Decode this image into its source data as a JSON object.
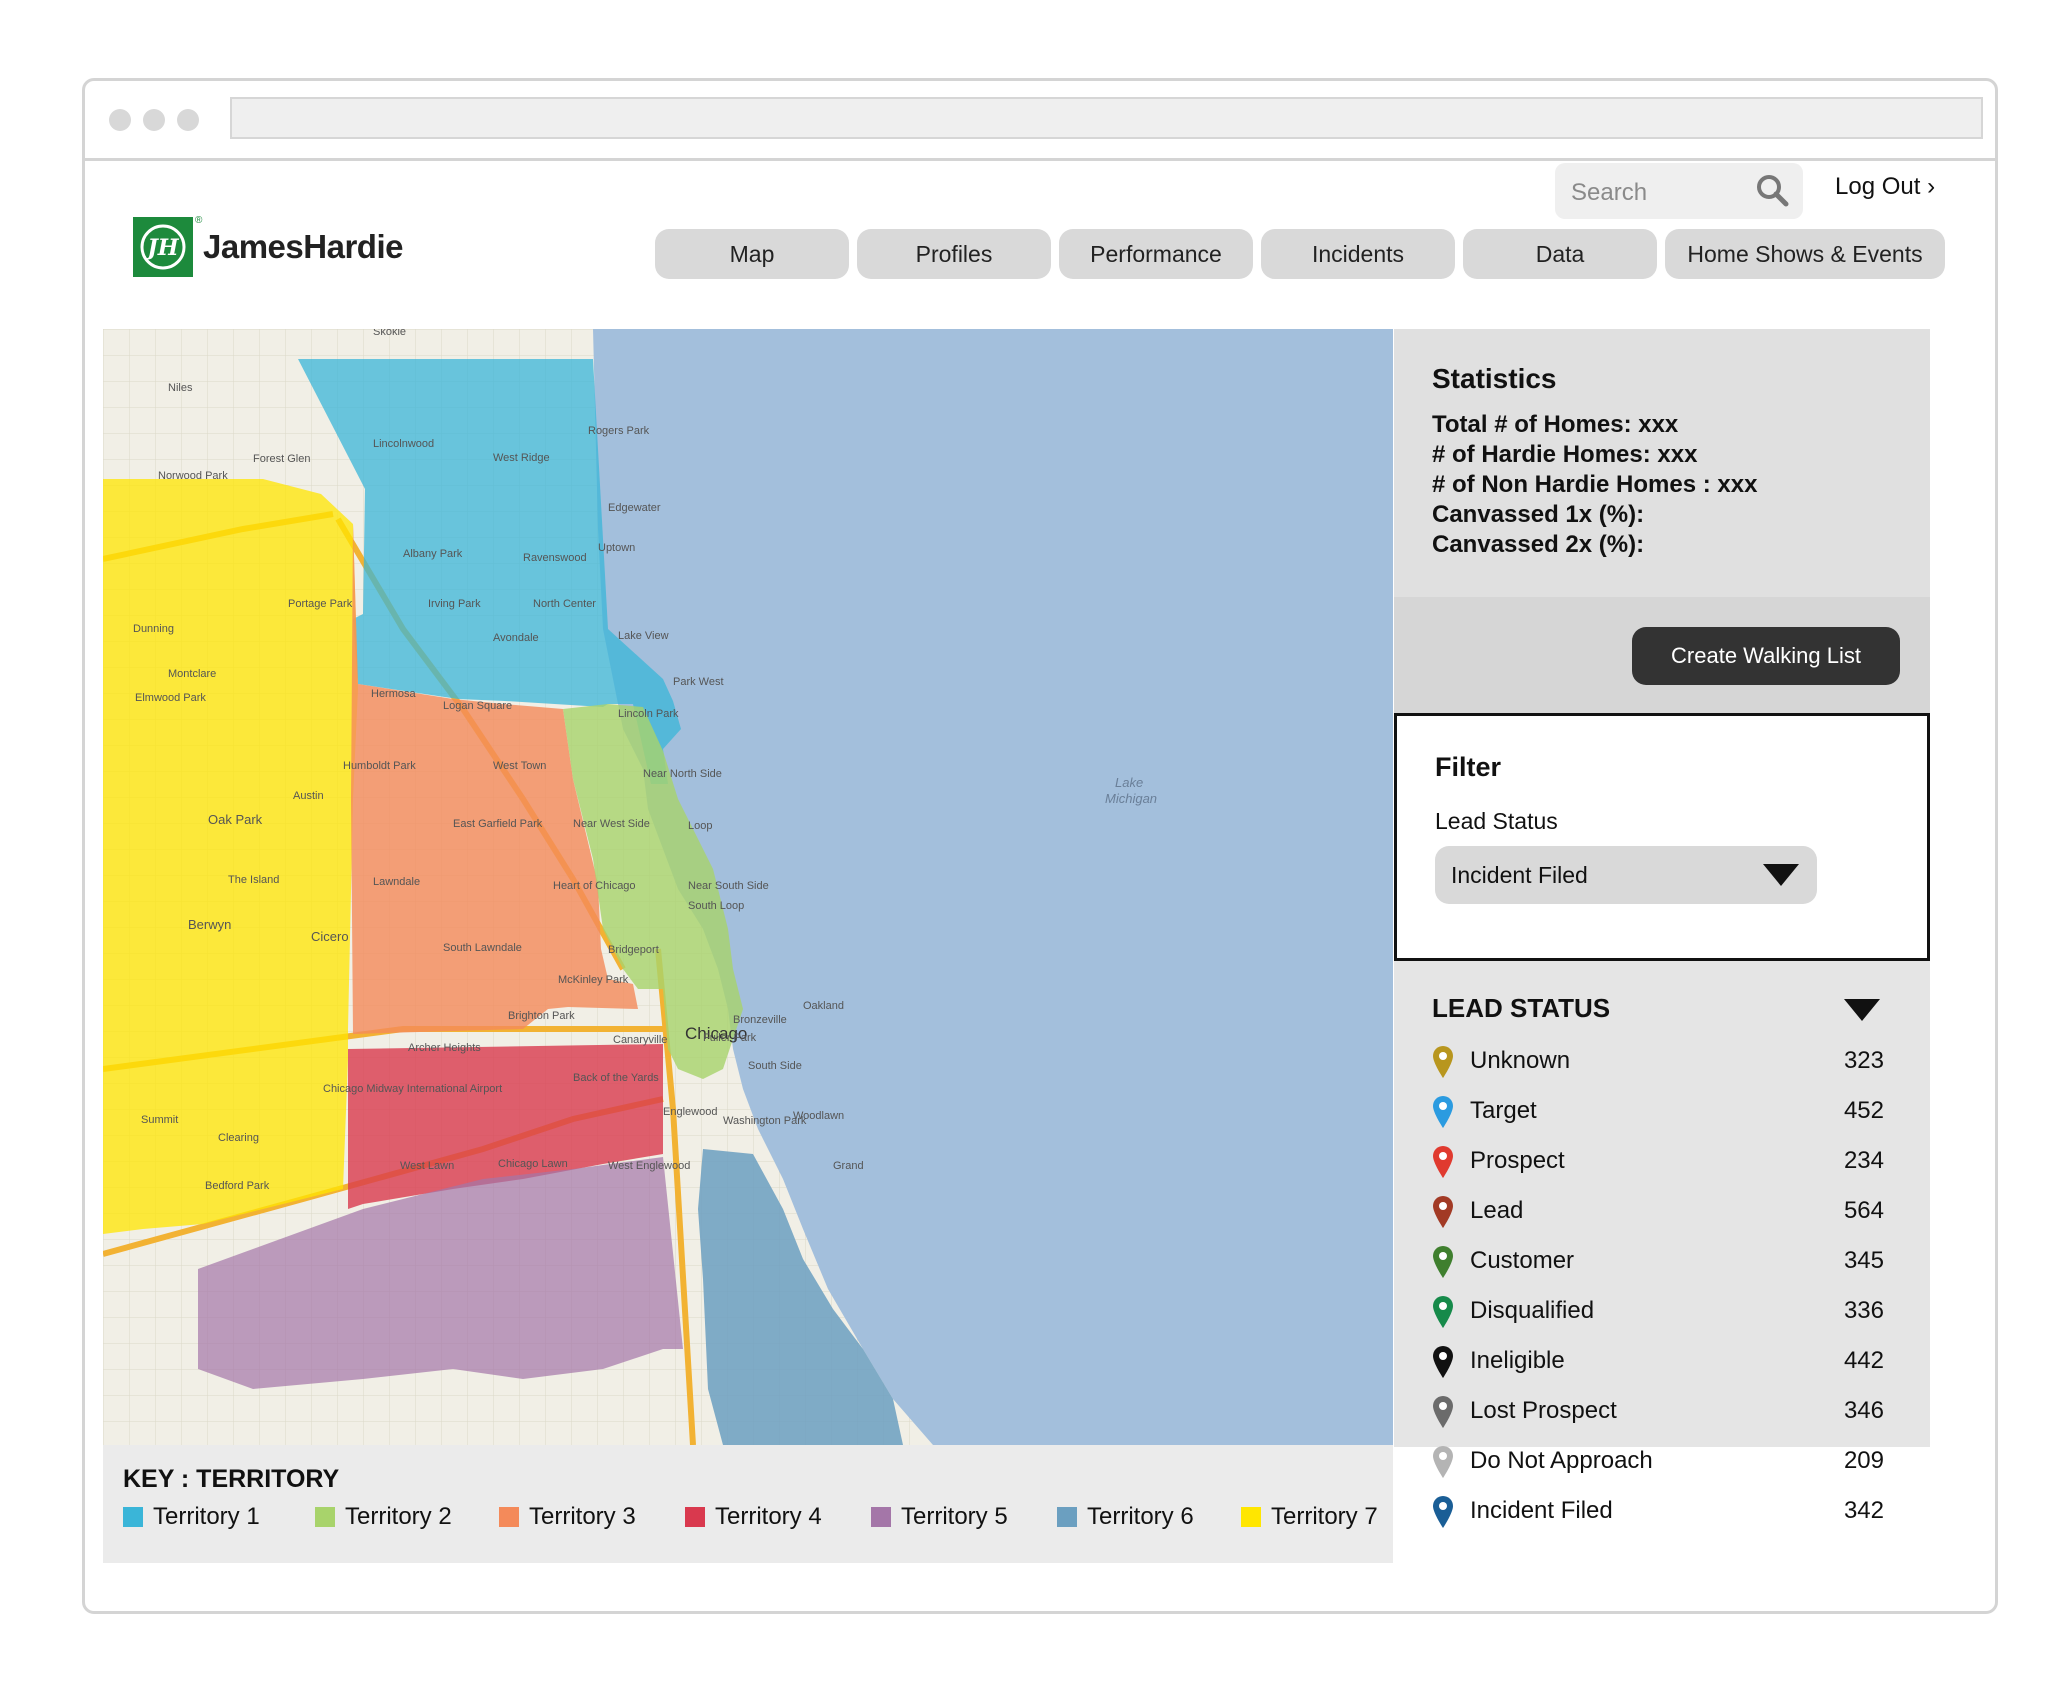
{
  "header": {
    "search_placeholder": "Search",
    "logout": "Log Out ›",
    "brand": "JamesHardie",
    "brand_mark": "JH"
  },
  "nav": [
    {
      "label": "Map"
    },
    {
      "label": "Profiles"
    },
    {
      "label": "Performance"
    },
    {
      "label": "Incidents"
    },
    {
      "label": "Data"
    },
    {
      "label": "Home Shows & Events"
    }
  ],
  "map": {
    "water_label_1": "Lake",
    "water_label_2": "Michigan",
    "city_label": "Chicago",
    "place_labels": [
      "Skokie",
      "Niles",
      "Lincolnwood",
      "West Ridge",
      "Rogers Park",
      "Edgewater",
      "Forest Glen",
      "Norwood Park",
      "Uptown",
      "Albany Park",
      "Ravenswood",
      "North Center",
      "Irving Park",
      "Portage Park",
      "Dunning",
      "Montclare",
      "Elmwood Park",
      "Hermosa",
      "Logan Square",
      "Avondale",
      "Lake View",
      "Lincoln Park",
      "Park West",
      "Humboldt Park",
      "West Town",
      "Near North Side",
      "Austin",
      "Oak Park",
      "East Garfield Park",
      "Near West Side",
      "Loop",
      "The Island",
      "Lawndale",
      "Heart of Chicago",
      "Near South Side",
      "South Loop",
      "Berwyn",
      "Cicero",
      "South Lawndale",
      "Bridgeport",
      "McKinley Park",
      "Brighton Park",
      "Bronzeville",
      "Oakland",
      "Archer Heights",
      "Canaryville",
      "Back of the Yards",
      "Fuller Park",
      "South Side",
      "Summit",
      "Chicago Midway International Airport",
      "Washington Park",
      "Clearing",
      "West Lawn",
      "Chicago Lawn",
      "West Englewood",
      "Englewood",
      "Woodlawn",
      "Bedford Park",
      "Grand"
    ]
  },
  "key": {
    "title": "KEY : TERRITORY",
    "items": [
      {
        "label": "Territory 1",
        "color": "#3ab5d8"
      },
      {
        "label": "Territory 2",
        "color": "#a8d36b"
      },
      {
        "label": "Territory 3",
        "color": "#f48a5a"
      },
      {
        "label": "Territory 4",
        "color": "#d9394e"
      },
      {
        "label": "Territory 5",
        "color": "#a476a8"
      },
      {
        "label": "Territory 6",
        "color": "#6b9fc0"
      },
      {
        "label": "Territory 7",
        "color": "#ffe600"
      }
    ]
  },
  "statistics": {
    "title": "Statistics",
    "lines": [
      "Total # of Homes: xxx",
      "# of Hardie Homes: xxx",
      "# of Non Hardie Homes : xxx",
      "Canvassed 1x (%):",
      "Canvassed 2x (%):"
    ]
  },
  "actions": {
    "create_walking_list": "Create Walking List"
  },
  "filter": {
    "title": "Filter",
    "label": "Lead Status",
    "selected": "Incident Filed"
  },
  "lead_status": {
    "title": "LEAD STATUS",
    "items": [
      {
        "label": "Unknown",
        "count": "323",
        "color": "#b8961e"
      },
      {
        "label": "Target",
        "count": "452",
        "color": "#2b9be0"
      },
      {
        "label": "Prospect",
        "count": "234",
        "color": "#e03a2f"
      },
      {
        "label": "Lead",
        "count": "564",
        "color": "#a23a25"
      },
      {
        "label": "Customer",
        "count": "345",
        "color": "#3f7f2e"
      },
      {
        "label": "Disqualified",
        "count": "336",
        "color": "#168a4a"
      },
      {
        "label": "Ineligible",
        "count": "442",
        "color": "#111111"
      },
      {
        "label": "Lost Prospect",
        "count": "346",
        "color": "#6b6b6b"
      },
      {
        "label": "Do Not Approach",
        "count": "209",
        "color": "#b4b4b4"
      },
      {
        "label": "Incident Filed",
        "count": "342",
        "color": "#1a5e96"
      }
    ]
  }
}
